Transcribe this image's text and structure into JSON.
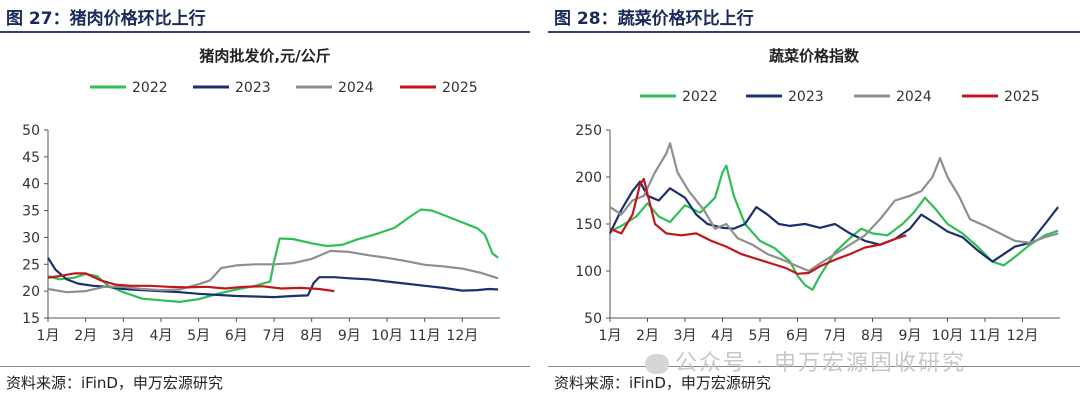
{
  "panels": [
    {
      "figure_title": "图 27：猪肉价格环比上行",
      "source": "资料来源：iFinD，申万宏源研究"
    },
    {
      "figure_title": "图 28：蔬菜价格环比上行",
      "source": "资料来源：iFinD，申万宏源研究"
    }
  ],
  "watermark": "公众号 · 申万宏源固收研究",
  "chart_data": [
    {
      "type": "line",
      "title": "猪肉批发价,元/公斤",
      "xlabel": "",
      "ylabel": "",
      "x_ticks": [
        "1月",
        "2月",
        "3月",
        "4月",
        "5月",
        "6月",
        "7月",
        "8月",
        "9月",
        "10月",
        "11月",
        "12月"
      ],
      "x_range": [
        1,
        13
      ],
      "ylim": [
        15,
        50
      ],
      "y_ticks": [
        15,
        20,
        25,
        30,
        35,
        40,
        45,
        50
      ],
      "legend_position": "top",
      "grid": false,
      "series": [
        {
          "name": "2022",
          "color": "#2fbf55",
          "points": [
            [
              1.0,
              22.8
            ],
            [
              1.3,
              22.2
            ],
            [
              1.7,
              22.5
            ],
            [
              2.0,
              23.2
            ],
            [
              2.3,
              22.8
            ],
            [
              2.6,
              21.0
            ],
            [
              3.0,
              19.8
            ],
            [
              3.5,
              18.6
            ],
            [
              4.0,
              18.3
            ],
            [
              4.5,
              18.0
            ],
            [
              5.0,
              18.5
            ],
            [
              5.5,
              19.5
            ],
            [
              6.0,
              20.3
            ],
            [
              6.5,
              21.0
            ],
            [
              6.9,
              21.8
            ],
            [
              7.0,
              25.5
            ],
            [
              7.15,
              29.8
            ],
            [
              7.5,
              29.7
            ],
            [
              8.0,
              28.9
            ],
            [
              8.4,
              28.4
            ],
            [
              8.8,
              28.6
            ],
            [
              9.2,
              29.6
            ],
            [
              9.7,
              30.6
            ],
            [
              10.2,
              31.8
            ],
            [
              10.6,
              33.8
            ],
            [
              10.9,
              35.2
            ],
            [
              11.2,
              35.0
            ],
            [
              11.6,
              33.9
            ],
            [
              12.0,
              32.8
            ],
            [
              12.4,
              31.7
            ],
            [
              12.6,
              30.5
            ],
            [
              12.8,
              27.0
            ],
            [
              12.95,
              26.2
            ]
          ]
        },
        {
          "name": "2023",
          "color": "#1c2f6e",
          "points": [
            [
              1.0,
              26.2
            ],
            [
              1.2,
              24.0
            ],
            [
              1.5,
              22.2
            ],
            [
              1.8,
              21.4
            ],
            [
              2.2,
              21.0
            ],
            [
              2.6,
              20.8
            ],
            [
              3.0,
              20.4
            ],
            [
              3.5,
              20.2
            ],
            [
              4.0,
              20.0
            ],
            [
              4.5,
              19.8
            ],
            [
              5.0,
              19.5
            ],
            [
              5.5,
              19.3
            ],
            [
              6.0,
              19.1
            ],
            [
              6.5,
              19.0
            ],
            [
              7.0,
              18.9
            ],
            [
              7.5,
              19.1
            ],
            [
              7.9,
              19.2
            ],
            [
              8.05,
              21.5
            ],
            [
              8.2,
              22.6
            ],
            [
              8.6,
              22.6
            ],
            [
              9.0,
              22.4
            ],
            [
              9.5,
              22.2
            ],
            [
              10.0,
              21.8
            ],
            [
              10.5,
              21.4
            ],
            [
              11.0,
              21.0
            ],
            [
              11.5,
              20.6
            ],
            [
              12.0,
              20.1
            ],
            [
              12.4,
              20.2
            ],
            [
              12.7,
              20.4
            ],
            [
              12.95,
              20.3
            ]
          ]
        },
        {
          "name": "2024",
          "color": "#8f8f8f",
          "points": [
            [
              1.0,
              20.4
            ],
            [
              1.5,
              19.8
            ],
            [
              2.0,
              20.0
            ],
            [
              2.5,
              20.8
            ],
            [
              3.0,
              20.8
            ],
            [
              3.5,
              20.4
            ],
            [
              4.0,
              20.2
            ],
            [
              4.5,
              20.3
            ],
            [
              5.0,
              21.3
            ],
            [
              5.3,
              22.0
            ],
            [
              5.6,
              24.3
            ],
            [
              6.0,
              24.8
            ],
            [
              6.5,
              25.0
            ],
            [
              7.0,
              25.0
            ],
            [
              7.5,
              25.2
            ],
            [
              8.0,
              26.0
            ],
            [
              8.5,
              27.5
            ],
            [
              9.0,
              27.3
            ],
            [
              9.5,
              26.7
            ],
            [
              10.0,
              26.2
            ],
            [
              10.5,
              25.6
            ],
            [
              11.0,
              24.9
            ],
            [
              11.5,
              24.6
            ],
            [
              12.0,
              24.2
            ],
            [
              12.5,
              23.4
            ],
            [
              12.95,
              22.4
            ]
          ]
        },
        {
          "name": "2025",
          "color": "#c0171c",
          "points": [
            [
              1.0,
              22.5
            ],
            [
              1.3,
              22.8
            ],
            [
              1.7,
              23.3
            ],
            [
              2.0,
              23.3
            ],
            [
              2.4,
              22.0
            ],
            [
              2.8,
              21.2
            ],
            [
              3.2,
              21.0
            ],
            [
              3.7,
              21.0
            ],
            [
              4.2,
              20.8
            ],
            [
              4.7,
              20.7
            ],
            [
              5.2,
              20.8
            ],
            [
              5.7,
              20.5
            ],
            [
              6.2,
              20.8
            ],
            [
              6.7,
              20.9
            ],
            [
              7.2,
              20.5
            ],
            [
              7.7,
              20.6
            ],
            [
              8.2,
              20.4
            ],
            [
              8.6,
              20.0
            ]
          ]
        }
      ]
    },
    {
      "type": "line",
      "title": "蔬菜价格指数",
      "xlabel": "",
      "ylabel": "",
      "x_ticks": [
        "1月",
        "2月",
        "3月",
        "4月",
        "5月",
        "6月",
        "7月",
        "8月",
        "9月",
        "10月",
        "11月",
        "12月"
      ],
      "x_range": [
        1,
        13
      ],
      "ylim": [
        50,
        250
      ],
      "y_ticks": [
        50,
        100,
        150,
        200,
        250
      ],
      "legend_position": "top",
      "grid": false,
      "series": [
        {
          "name": "2022",
          "color": "#2fbf55",
          "points": [
            [
              1.0,
              142
            ],
            [
              1.3,
              148
            ],
            [
              1.7,
              158
            ],
            [
              2.0,
              172
            ],
            [
              2.3,
              158
            ],
            [
              2.6,
              152
            ],
            [
              3.0,
              170
            ],
            [
              3.4,
              162
            ],
            [
              3.8,
              178
            ],
            [
              4.0,
              205
            ],
            [
              4.1,
              212
            ],
            [
              4.3,
              180
            ],
            [
              4.6,
              150
            ],
            [
              5.0,
              132
            ],
            [
              5.4,
              124
            ],
            [
              5.8,
              110
            ],
            [
              6.0,
              95
            ],
            [
              6.2,
              85
            ],
            [
              6.4,
              80
            ],
            [
              6.6,
              95
            ],
            [
              7.0,
              120
            ],
            [
              7.4,
              135
            ],
            [
              7.7,
              145
            ],
            [
              8.0,
              140
            ],
            [
              8.4,
              138
            ],
            [
              8.8,
              150
            ],
            [
              9.1,
              162
            ],
            [
              9.4,
              178
            ],
            [
              9.7,
              165
            ],
            [
              10.0,
              150
            ],
            [
              10.4,
              140
            ],
            [
              10.8,
              126
            ],
            [
              11.2,
              110
            ],
            [
              11.5,
              106
            ],
            [
              11.8,
              115
            ],
            [
              12.2,
              128
            ],
            [
              12.6,
              138
            ],
            [
              12.95,
              143
            ]
          ]
        },
        {
          "name": "2023",
          "color": "#1c2f6e",
          "points": [
            [
              1.0,
              140
            ],
            [
              1.3,
              165
            ],
            [
              1.6,
              185
            ],
            [
              1.8,
              195
            ],
            [
              2.0,
              180
            ],
            [
              2.3,
              175
            ],
            [
              2.6,
              188
            ],
            [
              3.0,
              178
            ],
            [
              3.3,
              160
            ],
            [
              3.6,
              150
            ],
            [
              4.0,
              146
            ],
            [
              4.3,
              145
            ],
            [
              4.6,
              150
            ],
            [
              4.9,
              168
            ],
            [
              5.2,
              160
            ],
            [
              5.5,
              150
            ],
            [
              5.8,
              148
            ],
            [
              6.2,
              150
            ],
            [
              6.6,
              146
            ],
            [
              7.0,
              150
            ],
            [
              7.4,
              140
            ],
            [
              7.8,
              132
            ],
            [
              8.2,
              128
            ],
            [
              8.6,
              134
            ],
            [
              9.0,
              145
            ],
            [
              9.3,
              160
            ],
            [
              9.7,
              150
            ],
            [
              10.0,
              142
            ],
            [
              10.4,
              136
            ],
            [
              10.8,
              122
            ],
            [
              11.2,
              110
            ],
            [
              11.5,
              118
            ],
            [
              11.8,
              126
            ],
            [
              12.2,
              130
            ],
            [
              12.6,
              150
            ],
            [
              12.95,
              168
            ]
          ]
        },
        {
          "name": "2024",
          "color": "#8f8f8f",
          "points": [
            [
              1.0,
              168
            ],
            [
              1.3,
              160
            ],
            [
              1.6,
              175
            ],
            [
              1.9,
              180
            ],
            [
              2.2,
              205
            ],
            [
              2.5,
              225
            ],
            [
              2.6,
              236
            ],
            [
              2.8,
              205
            ],
            [
              3.1,
              185
            ],
            [
              3.5,
              165
            ],
            [
              3.8,
              145
            ],
            [
              4.1,
              150
            ],
            [
              4.4,
              135
            ],
            [
              4.8,
              128
            ],
            [
              5.2,
              118
            ],
            [
              5.6,
              112
            ],
            [
              6.0,
              105
            ],
            [
              6.3,
              100
            ],
            [
              6.6,
              108
            ],
            [
              7.0,
              118
            ],
            [
              7.4,
              128
            ],
            [
              7.8,
              138
            ],
            [
              8.2,
              155
            ],
            [
              8.6,
              175
            ],
            [
              9.0,
              180
            ],
            [
              9.3,
              185
            ],
            [
              9.6,
              200
            ],
            [
              9.8,
              220
            ],
            [
              10.0,
              200
            ],
            [
              10.3,
              180
            ],
            [
              10.6,
              155
            ],
            [
              11.0,
              148
            ],
            [
              11.4,
              140
            ],
            [
              11.8,
              132
            ],
            [
              12.2,
              130
            ],
            [
              12.6,
              136
            ],
            [
              12.95,
              140
            ]
          ]
        },
        {
          "name": "2025",
          "color": "#c0171c",
          "points": [
            [
              1.0,
              145
            ],
            [
              1.3,
              140
            ],
            [
              1.6,
              160
            ],
            [
              1.8,
              192
            ],
            [
              1.9,
              198
            ],
            [
              2.0,
              182
            ],
            [
              2.2,
              150
            ],
            [
              2.5,
              140
            ],
            [
              2.9,
              138
            ],
            [
              3.3,
              140
            ],
            [
              3.7,
              132
            ],
            [
              4.1,
              126
            ],
            [
              4.5,
              118
            ],
            [
              4.9,
              113
            ],
            [
              5.3,
              108
            ],
            [
              5.7,
              103
            ],
            [
              6.0,
              97
            ],
            [
              6.3,
              98
            ],
            [
              6.6,
              105
            ],
            [
              7.0,
              112
            ],
            [
              7.4,
              118
            ],
            [
              7.8,
              125
            ],
            [
              8.2,
              128
            ],
            [
              8.6,
              134
            ],
            [
              8.9,
              138
            ]
          ]
        }
      ]
    }
  ]
}
